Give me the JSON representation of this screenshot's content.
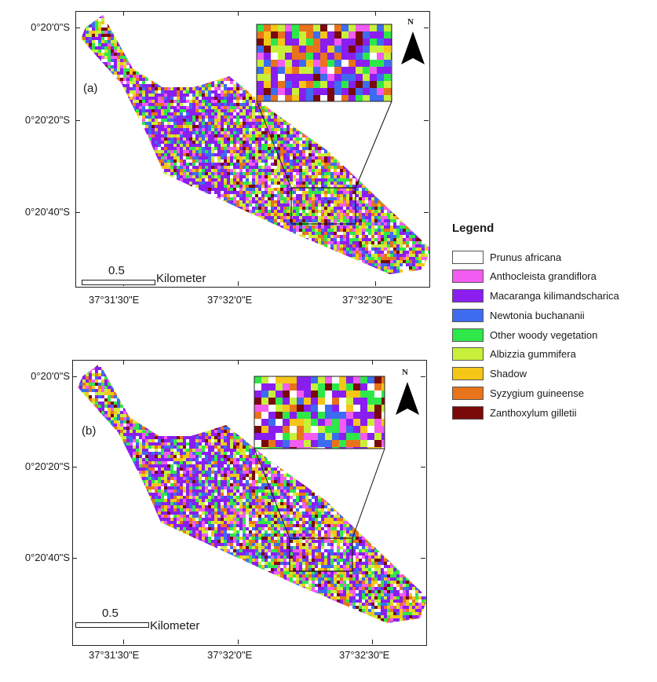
{
  "panels": [
    {
      "label": "(a)",
      "lat_labels": [
        "0°20'0\"S",
        "0°20'20\"S",
        "0°20'40\"S"
      ],
      "lon_labels": [
        "37°31'30\"E",
        "37°32'0\"E",
        "37°32'30\"E"
      ],
      "scale_value": "0.5",
      "scale_unit": "Kilometer",
      "north": "N"
    },
    {
      "label": "(b)",
      "lat_labels": [
        "0°20'0\"S",
        "0°20'20\"S",
        "0°20'40\"S"
      ],
      "lon_labels": [
        "37°31'30\"E",
        "37°32'0\"E",
        "37°32'30\"E"
      ],
      "scale_value": "0.5",
      "scale_unit": "Kilometer",
      "north": "N"
    }
  ],
  "legend": {
    "title": "Legend",
    "items": [
      {
        "label": "Prunus africana",
        "color": "#ffffff"
      },
      {
        "label": "Anthocleista grandiflora",
        "color": "#f25cf0"
      },
      {
        "label": "Macaranga kilimandscharica",
        "color": "#8a1ef0"
      },
      {
        "label": "Newtonia buchananii",
        "color": "#3d6cf0"
      },
      {
        "label": "Other woody vegetation",
        "color": "#2ee84a"
      },
      {
        "label": "Albizzia gummifera",
        "color": "#c8f03a"
      },
      {
        "label": "Shadow",
        "color": "#f5c518"
      },
      {
        "label": "Syzygium guineense",
        "color": "#e8731a"
      },
      {
        "label": "Zanthoxylum gilletii",
        "color": "#7a0a0a"
      }
    ]
  }
}
